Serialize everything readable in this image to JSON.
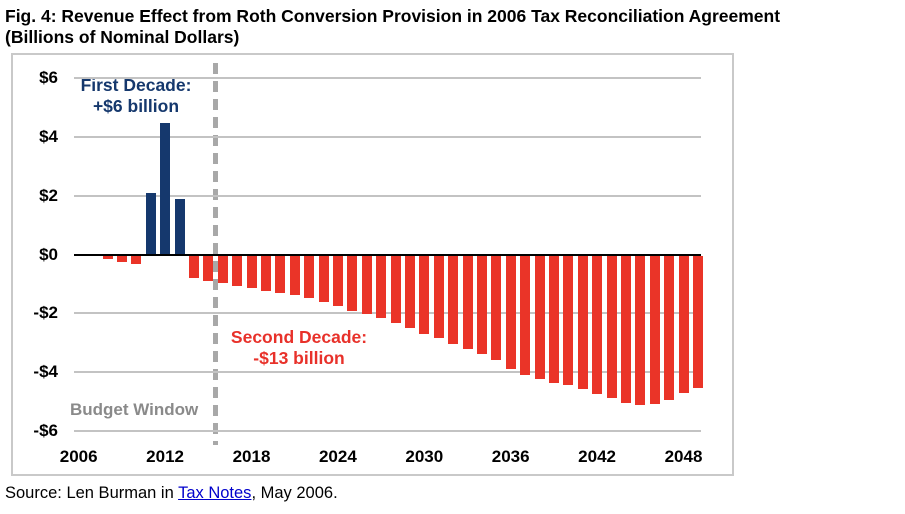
{
  "title_line1": "Fig. 4: Revenue Effect from Roth Conversion Provision in 2006 Tax Reconciliation Agreement",
  "title_line2": "(Billions of Nominal Dollars)",
  "annotations": {
    "first_decade_line1": "First Decade:",
    "first_decade_line2": "+$6 billion",
    "second_decade_line1": "Second Decade:",
    "second_decade_line2": "-$13 billion",
    "budget_window": "Budget Window"
  },
  "source": {
    "prefix": "Source: Len Burman in ",
    "link_text": "Tax Notes",
    "suffix": ", May 2006."
  },
  "colors": {
    "positive_bar": "#15386d",
    "negative_bar": "#ea3428",
    "first_decade_text": "#15386d",
    "second_decade_text": "#e8312a",
    "budget_window_text": "#8a8a8a",
    "dashed_line": "#a8a8a8",
    "gridline": "#c3c3c3",
    "zero_line": "#000000",
    "link_blue": "#0000cc"
  },
  "chart_data": {
    "type": "bar",
    "title": "Fig. 4: Revenue Effect from Roth Conversion Provision in 2006 Tax Reconciliation Agreement (Billions of Nominal Dollars)",
    "xlabel": "",
    "ylabel": "",
    "ylim": [
      -6.9,
      6.8
    ],
    "grid": true,
    "y_tick_labels": [
      "$6",
      "$4",
      "$2",
      "$0",
      "-$2",
      "-$4",
      "-$6"
    ],
    "y_tick_values": [
      6,
      4,
      2,
      0,
      -2,
      -4,
      -6
    ],
    "x_tick_labels": [
      "2006",
      "2012",
      "2018",
      "2024",
      "2030",
      "2036",
      "2042",
      "2048"
    ],
    "x_tick_values": [
      2006,
      2012,
      2018,
      2024,
      2030,
      2036,
      2042,
      2048
    ],
    "x_range": [
      2006,
      2049.6
    ],
    "budget_window_x": 2015.5,
    "first_decade_total_billions": 6,
    "second_decade_total_billions": -13,
    "years": [
      2008,
      2009,
      2010,
      2011,
      2012,
      2013,
      2014,
      2015,
      2016,
      2017,
      2018,
      2019,
      2020,
      2021,
      2022,
      2023,
      2024,
      2025,
      2026,
      2027,
      2028,
      2029,
      2030,
      2031,
      2032,
      2033,
      2034,
      2035,
      2036,
      2037,
      2038,
      2039,
      2040,
      2041,
      2042,
      2043,
      2044,
      2045,
      2046,
      2047,
      2048,
      2049
    ],
    "values": [
      -0.12,
      -0.22,
      -0.3,
      2.1,
      4.48,
      1.9,
      -0.76,
      -0.87,
      -0.95,
      -1.04,
      -1.12,
      -1.2,
      -1.28,
      -1.36,
      -1.46,
      -1.57,
      -1.72,
      -1.9,
      -2.0,
      -2.12,
      -2.3,
      -2.48,
      -2.66,
      -2.82,
      -3.0,
      -3.18,
      -3.35,
      -3.55,
      -3.86,
      -4.05,
      -4.2,
      -4.32,
      -4.42,
      -4.55,
      -4.7,
      -4.85,
      -5.0,
      -5.08,
      -5.04,
      -4.92,
      -4.66,
      -4.5
    ]
  }
}
